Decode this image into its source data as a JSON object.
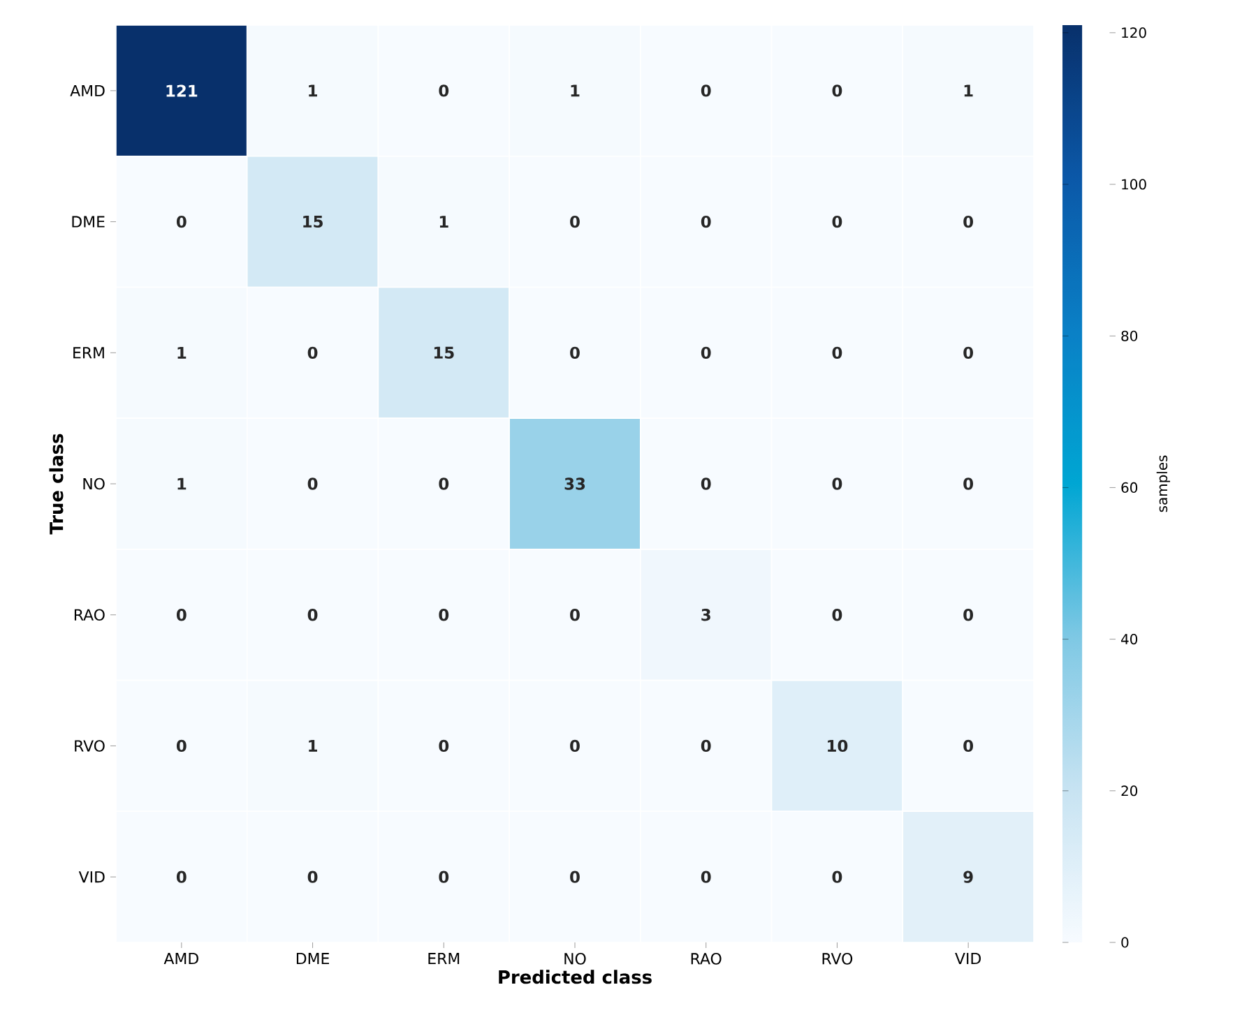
{
  "chart_data": {
    "type": "heatmap",
    "xlabel": "Predicted class",
    "ylabel": "True class",
    "clabel": "samples",
    "categories": [
      "AMD",
      "DME",
      "ERM",
      "NO",
      "RAO",
      "RVO",
      "VID"
    ],
    "y_categories": [
      "AMD",
      "DME",
      "ERM",
      "NO",
      "RAO",
      "RVO",
      "VID"
    ],
    "cells": [
      [
        121,
        1,
        0,
        1,
        0,
        0,
        1
      ],
      [
        0,
        15,
        1,
        0,
        0,
        0,
        0
      ],
      [
        1,
        0,
        15,
        0,
        0,
        0,
        0
      ],
      [
        1,
        0,
        0,
        33,
        0,
        0,
        0
      ],
      [
        0,
        0,
        0,
        0,
        3,
        0,
        0
      ],
      [
        0,
        1,
        0,
        0,
        0,
        10,
        0
      ],
      [
        0,
        0,
        0,
        0,
        0,
        0,
        9
      ]
    ],
    "clim": [
      0,
      121
    ],
    "cticks": [
      0,
      20,
      40,
      60,
      80,
      100,
      120
    ],
    "data_labels": true
  }
}
